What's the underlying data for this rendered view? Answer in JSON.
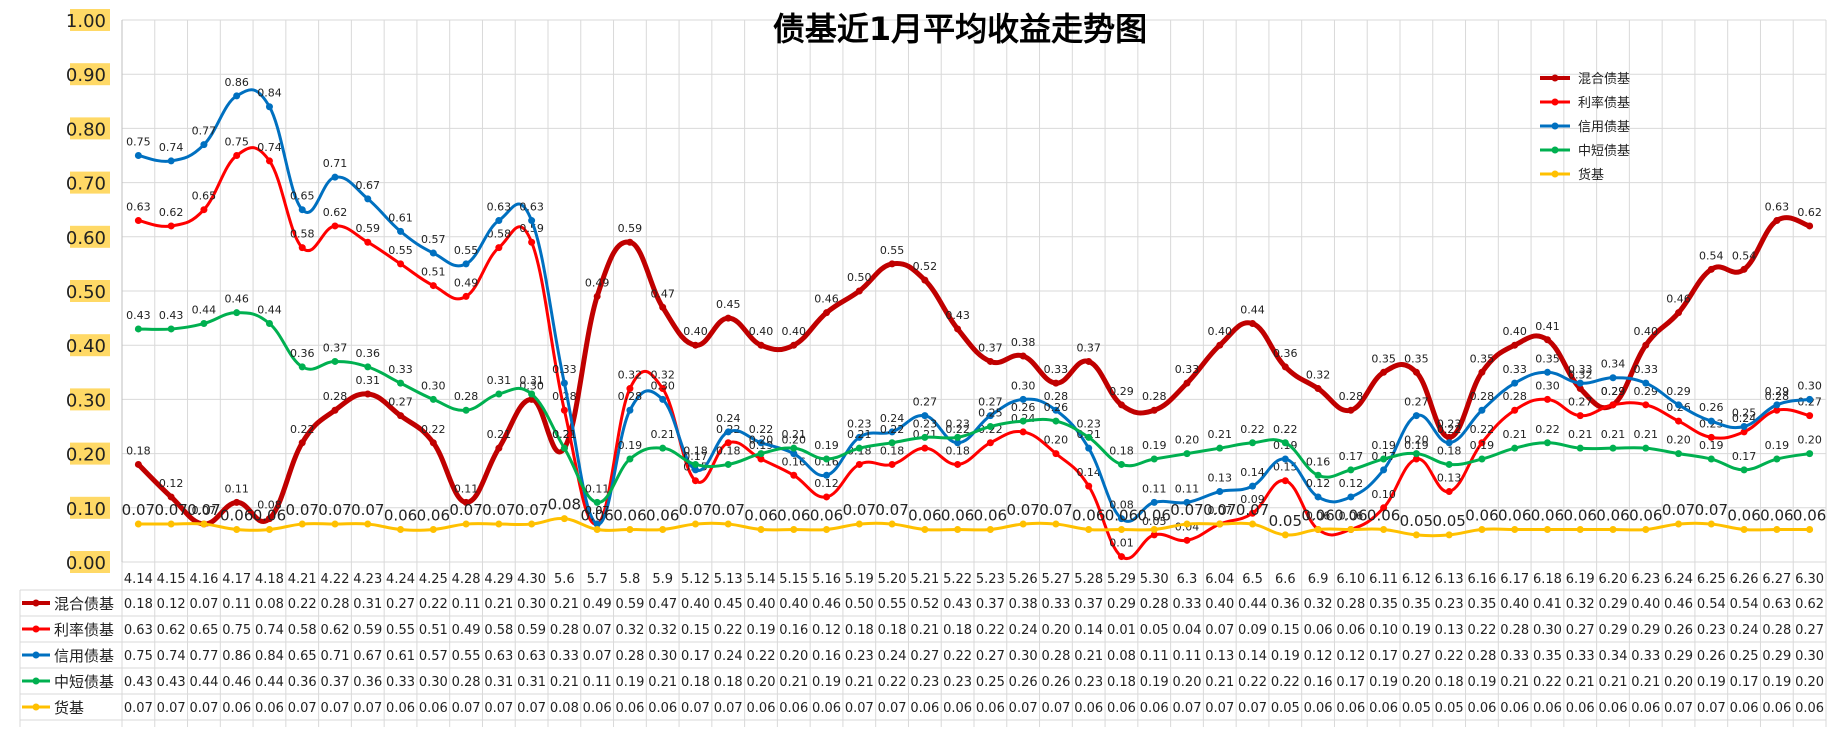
{
  "chart_data": {
    "type": "line",
    "title": "债基近1月平均收益走势图",
    "xlabel": "",
    "ylabel": "",
    "ylim": [
      0,
      1
    ],
    "y_ticks": [
      "0.00",
      "0.10",
      "0.20",
      "0.30",
      "0.40",
      "0.50",
      "0.60",
      "0.70",
      "0.80",
      "0.90",
      "1.00"
    ],
    "grid": true,
    "legend_position": "top-right",
    "data_table": true,
    "categories": [
      "4.14",
      "4.15",
      "4.16",
      "4.17",
      "4.18",
      "4.21",
      "4.22",
      "4.23",
      "4.24",
      "4.25",
      "4.28",
      "4.29",
      "4.30",
      "5.6",
      "5.7",
      "5.8",
      "5.9",
      "5.12",
      "5.13",
      "5.14",
      "5.15",
      "5.16",
      "5.19",
      "5.20",
      "5.21",
      "5.22",
      "5.23",
      "5.26",
      "5.27",
      "5.28",
      "5.29",
      "5.30",
      "6.3",
      "6.04",
      "6.5",
      "6.6",
      "6.9",
      "6.10",
      "6.11",
      "6.12",
      "6.13",
      "6.16",
      "6.17",
      "6.18",
      "6.19",
      "6.20",
      "6.23",
      "6.24",
      "6.25",
      "6.26",
      "6.27",
      "6.30"
    ],
    "series": [
      {
        "name": "混合债基",
        "color": "#c00000",
        "values": [
          0.18,
          0.12,
          0.07,
          0.11,
          0.08,
          0.22,
          0.28,
          0.31,
          0.27,
          0.22,
          0.11,
          0.21,
          0.3,
          0.21,
          0.49,
          0.59,
          0.47,
          0.4,
          0.45,
          0.4,
          0.4,
          0.46,
          0.5,
          0.55,
          0.52,
          0.43,
          0.37,
          0.38,
          0.33,
          0.37,
          0.29,
          0.28,
          0.33,
          0.4,
          0.44,
          0.36,
          0.32,
          0.28,
          0.35,
          0.35,
          0.23,
          0.35,
          0.4,
          0.41,
          0.32,
          0.29,
          0.4,
          0.46,
          0.54,
          0.54,
          0.63,
          0.62
        ]
      },
      {
        "name": "利率债基",
        "color": "#ff0000",
        "values": [
          0.63,
          0.62,
          0.65,
          0.75,
          0.74,
          0.58,
          0.62,
          0.59,
          0.55,
          0.51,
          0.49,
          0.58,
          0.59,
          0.28,
          0.07,
          0.32,
          0.32,
          0.15,
          0.22,
          0.19,
          0.16,
          0.12,
          0.18,
          0.18,
          0.21,
          0.18,
          0.22,
          0.24,
          0.2,
          0.14,
          0.01,
          0.05,
          0.04,
          0.07,
          0.09,
          0.15,
          0.06,
          0.06,
          0.1,
          0.19,
          0.13,
          0.22,
          0.28,
          0.3,
          0.27,
          0.29,
          0.29,
          0.26,
          0.23,
          0.24,
          0.28,
          0.27
        ]
      },
      {
        "name": "信用债基",
        "color": "#0070c0",
        "values": [
          0.75,
          0.74,
          0.77,
          0.86,
          0.84,
          0.65,
          0.71,
          0.67,
          0.61,
          0.57,
          0.55,
          0.63,
          0.63,
          0.33,
          0.07,
          0.28,
          0.3,
          0.17,
          0.24,
          0.22,
          0.2,
          0.16,
          0.23,
          0.24,
          0.27,
          0.22,
          0.27,
          0.3,
          0.28,
          0.21,
          0.08,
          0.11,
          0.11,
          0.13,
          0.14,
          0.19,
          0.12,
          0.12,
          0.17,
          0.27,
          0.22,
          0.28,
          0.33,
          0.35,
          0.33,
          0.34,
          0.33,
          0.29,
          0.26,
          0.25,
          0.29,
          0.3
        ]
      },
      {
        "name": "中短债基",
        "color": "#00b050",
        "values": [
          0.43,
          0.43,
          0.44,
          0.46,
          0.44,
          0.36,
          0.37,
          0.36,
          0.33,
          0.3,
          0.28,
          0.31,
          0.31,
          0.21,
          0.11,
          0.19,
          0.21,
          0.18,
          0.18,
          0.2,
          0.21,
          0.19,
          0.21,
          0.22,
          0.23,
          0.23,
          0.25,
          0.26,
          0.26,
          0.23,
          0.18,
          0.19,
          0.2,
          0.21,
          0.22,
          0.22,
          0.16,
          0.17,
          0.19,
          0.2,
          0.18,
          0.19,
          0.21,
          0.22,
          0.21,
          0.21,
          0.21,
          0.2,
          0.19,
          0.17,
          0.19,
          0.2
        ]
      },
      {
        "name": "货基",
        "color": "#ffc000",
        "values": [
          0.07,
          0.07,
          0.07,
          0.06,
          0.06,
          0.07,
          0.07,
          0.07,
          0.06,
          0.06,
          0.07,
          0.07,
          0.07,
          0.08,
          0.06,
          0.06,
          0.06,
          0.07,
          0.07,
          0.06,
          0.06,
          0.06,
          0.07,
          0.07,
          0.06,
          0.06,
          0.06,
          0.07,
          0.07,
          0.06,
          0.06,
          0.06,
          0.07,
          0.07,
          0.07,
          0.05,
          0.06,
          0.06,
          0.06,
          0.05,
          0.05,
          0.06,
          0.06,
          0.06,
          0.06,
          0.06,
          0.06,
          0.07,
          0.07,
          0.06,
          0.06,
          0.06
        ]
      }
    ]
  }
}
